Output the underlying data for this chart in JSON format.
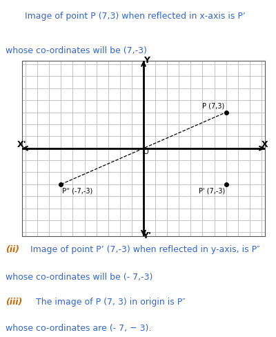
{
  "grid_color": "#bbbbbb",
  "axis_color": "#000000",
  "background": "#ffffff",
  "point_P": [
    7,
    3
  ],
  "point_P_prime": [
    7,
    -3
  ],
  "point_P_double_prime": [
    -7,
    -3
  ],
  "xlim": [
    -10,
    10
  ],
  "ylim": [
    -7,
    7
  ],
  "dashed_line_color": "#000000",
  "point_color": "#000000",
  "i_color": "#cc6600",
  "ii_color": "#cc6600",
  "iii_color": "#cc6600",
  "normal_color": "#3366cc",
  "text_fontsize": 9,
  "label_fontsize": 7,
  "axis_label_fontsize": 9
}
